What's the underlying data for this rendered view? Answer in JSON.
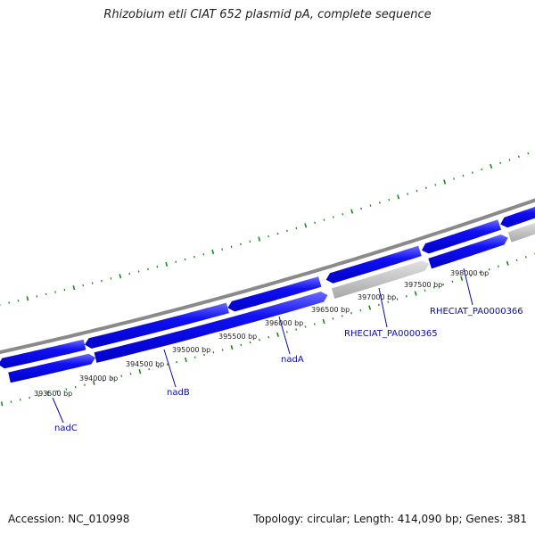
{
  "title": "Rhizobium etli CIAT 652 plasmid pA, complete sequence",
  "footer": {
    "accession": "Accession: NC_010998",
    "summary": "Topology: circular; Length: 414,090 bp; Genes: 381"
  },
  "colors": {
    "gene": "#0000ee",
    "gene_highlight": "#5a5aff",
    "pseudo_gene": "#bdbdbd",
    "backbone": "#8a8a8a",
    "tick": "#1a8a1a",
    "label": "#0b0ba8"
  },
  "bp_labels": [
    "393500 bp",
    "394000 bp",
    "394500 bp",
    "395000 bp",
    "395500 bp",
    "396000 bp",
    "396500 bp",
    "397000 bp",
    "397500 bp",
    "398000 bp"
  ],
  "gene_labels": [
    "nadC",
    "nadB",
    "nadA",
    "RHECIAT_PA0000365",
    "RHECIAT_PA0000366"
  ]
}
